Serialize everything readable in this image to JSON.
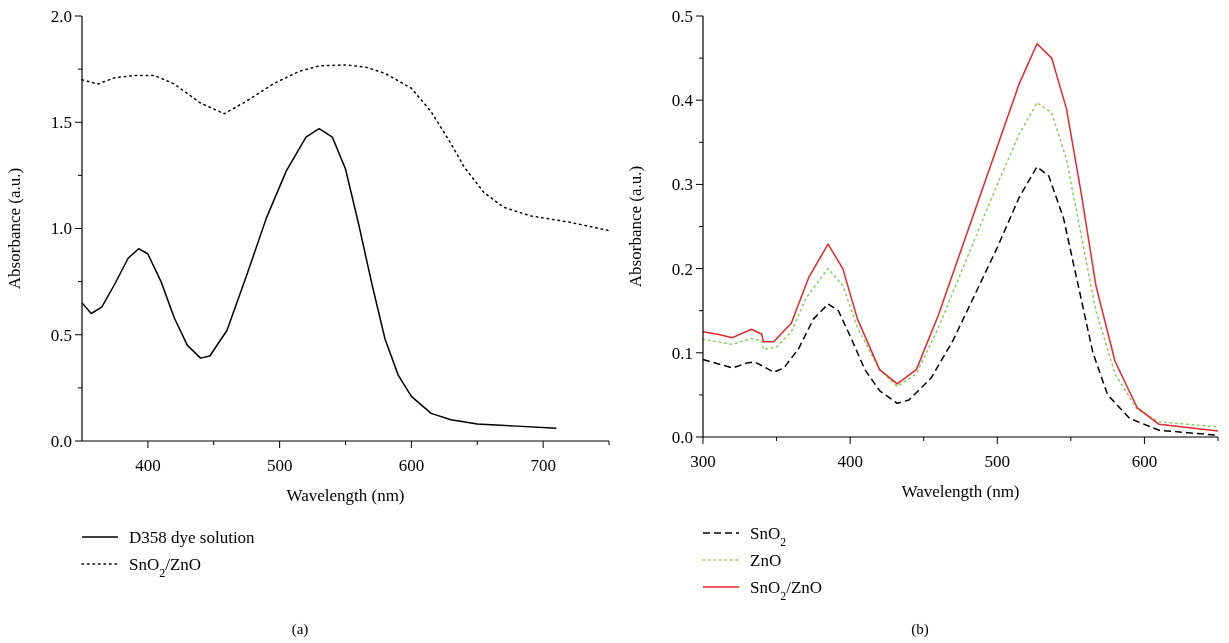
{
  "chart_data": [
    {
      "type": "line",
      "xlabel": "Wavelength (nm)",
      "ylabel": "Absorbance (a.u.)",
      "annotations": [
        "(a)"
      ],
      "legend": "bottom",
      "grid": false,
      "xlim": [
        350,
        750
      ],
      "xticks": [
        400,
        500,
        600,
        700,
        {
          "value": 450,
          "label": null
        },
        {
          "value": 550,
          "label": null
        },
        {
          "value": 650,
          "label": null
        },
        {
          "value": 750,
          "label": null
        }
      ],
      "ylim": [
        0,
        2
      ],
      "yticks": [
        {
          "value": 0,
          "label": "0.0"
        },
        {
          "value": 0.5,
          "label": "0.5"
        },
        {
          "value": 1,
          "label": "1.0"
        },
        {
          "value": 1.5,
          "label": "1.5"
        },
        {
          "value": 2,
          "label": "2.0"
        },
        {
          "value": 0.25,
          "label": null
        },
        {
          "value": 0.75,
          "label": null
        },
        {
          "value": 1.25,
          "label": null
        },
        {
          "value": 1.75,
          "label": null
        }
      ],
      "series": [
        {
          "name": "D358 dye solution",
          "color": "#000000",
          "line_style": "solid",
          "x": [
            350,
            357,
            365,
            375,
            385,
            393,
            400,
            410,
            420,
            430,
            440,
            447,
            460,
            475,
            490,
            505,
            520,
            530,
            540,
            550,
            560,
            570,
            580,
            590,
            600,
            615,
            630,
            650,
            680,
            710
          ],
          "values": [
            0.65,
            0.6,
            0.63,
            0.74,
            0.86,
            0.905,
            0.88,
            0.75,
            0.58,
            0.45,
            0.39,
            0.4,
            0.52,
            0.78,
            1.05,
            1.27,
            1.43,
            1.47,
            1.43,
            1.28,
            1.02,
            0.74,
            0.48,
            0.31,
            0.21,
            0.13,
            0.1,
            0.08,
            0.07,
            0.06
          ]
        },
        {
          "name": "SnO$_{2}$/ZnO",
          "color": "#000000",
          "line_style": "dotted",
          "x": [
            350,
            362,
            375,
            390,
            405,
            420,
            440,
            458,
            475,
            495,
            515,
            530,
            550,
            565,
            580,
            600,
            615,
            630,
            640,
            655,
            670,
            690,
            720,
            750
          ],
          "values": [
            1.7,
            1.68,
            1.71,
            1.72,
            1.72,
            1.68,
            1.59,
            1.54,
            1.6,
            1.68,
            1.74,
            1.765,
            1.77,
            1.76,
            1.73,
            1.66,
            1.55,
            1.4,
            1.29,
            1.17,
            1.1,
            1.06,
            1.03,
            0.99
          ]
        }
      ]
    },
    {
      "type": "line",
      "xlabel": "Wavelength (nm)",
      "ylabel": "Absorbance (a.u.)",
      "annotations": [
        "(b)"
      ],
      "legend": "bottom",
      "grid": false,
      "xlim": [
        300,
        650
      ],
      "xticks": [
        300,
        400,
        500,
        600,
        {
          "value": 350,
          "label": null
        },
        {
          "value": 450,
          "label": null
        },
        {
          "value": 550,
          "label": null
        },
        {
          "value": 650,
          "label": null
        }
      ],
      "ylim": [
        0,
        0.5
      ],
      "yticks": [
        {
          "value": 0,
          "label": "0.0"
        },
        0.1,
        0.2,
        0.3,
        0.4,
        0.5,
        {
          "value": 0.05,
          "label": null
        },
        {
          "value": 0.15,
          "label": null
        },
        {
          "value": 0.25,
          "label": null
        },
        {
          "value": 0.35,
          "label": null
        },
        {
          "value": 0.45,
          "label": null
        }
      ],
      "series": [
        {
          "name": "SnO$_{2}$",
          "color": "#000000",
          "line_style": "dashed",
          "x": [
            300,
            310,
            320,
            330,
            335,
            342,
            348,
            355,
            365,
            375,
            385,
            392,
            400,
            410,
            420,
            432,
            440,
            455,
            470,
            485,
            500,
            515,
            527,
            535,
            545,
            555,
            565,
            575,
            590,
            610,
            650
          ],
          "values": [
            0.092,
            0.087,
            0.082,
            0.088,
            0.089,
            0.083,
            0.077,
            0.082,
            0.105,
            0.14,
            0.158,
            0.15,
            0.12,
            0.08,
            0.055,
            0.04,
            0.044,
            0.07,
            0.115,
            0.17,
            0.225,
            0.285,
            0.321,
            0.31,
            0.26,
            0.18,
            0.1,
            0.05,
            0.022,
            0.008,
            0.002
          ]
        },
        {
          "name": "ZnO",
          "color": "#7fce58",
          "line_style": "dotted",
          "x": [
            300,
            320,
            333,
            340,
            341,
            350,
            360,
            370,
            385,
            395,
            405,
            420,
            432,
            445,
            460,
            480,
            500,
            515,
            527,
            537,
            547,
            557,
            567,
            580,
            595,
            610,
            650
          ],
          "values": [
            0.116,
            0.11,
            0.117,
            0.114,
            0.104,
            0.107,
            0.125,
            0.165,
            0.2,
            0.18,
            0.13,
            0.08,
            0.06,
            0.075,
            0.13,
            0.215,
            0.3,
            0.36,
            0.397,
            0.385,
            0.33,
            0.24,
            0.15,
            0.075,
            0.033,
            0.018,
            0.012
          ]
        },
        {
          "name": "SnO$_{2}$/ZnO",
          "color": "#e8262b",
          "line_style": "solid",
          "x": [
            300,
            310,
            320,
            333,
            340,
            341,
            348,
            360,
            372,
            385,
            395,
            405,
            420,
            432,
            445,
            460,
            480,
            500,
            515,
            527,
            537,
            547,
            557,
            567,
            580,
            595,
            610,
            650
          ],
          "values": [
            0.125,
            0.122,
            0.118,
            0.128,
            0.122,
            0.113,
            0.113,
            0.135,
            0.19,
            0.229,
            0.2,
            0.14,
            0.08,
            0.063,
            0.08,
            0.145,
            0.245,
            0.345,
            0.42,
            0.467,
            0.45,
            0.39,
            0.29,
            0.18,
            0.09,
            0.035,
            0.015,
            0.007
          ]
        }
      ]
    }
  ]
}
